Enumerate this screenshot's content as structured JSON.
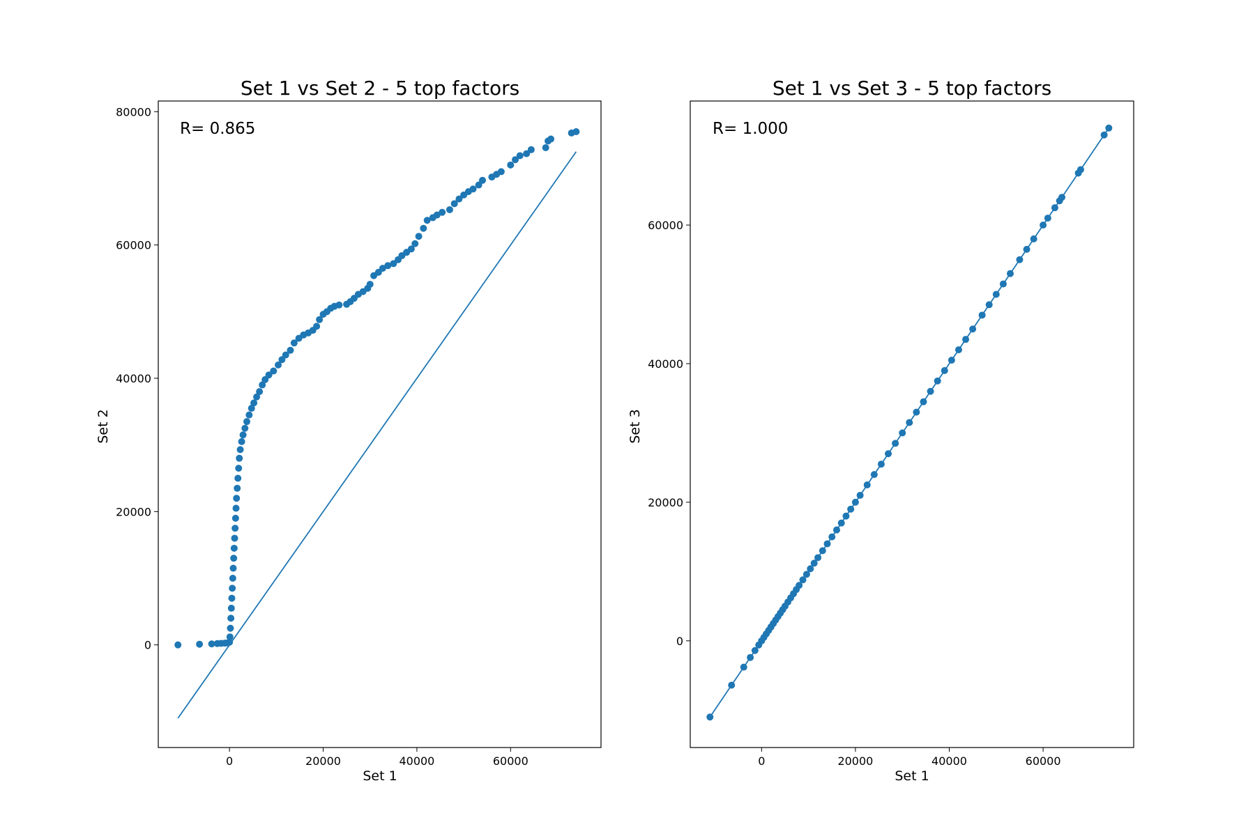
{
  "colors": {
    "series": "#1f77b4",
    "axis": "#000000",
    "background": "#ffffff"
  },
  "chart_data": [
    {
      "type": "scatter",
      "title": "Set 1 vs Set 2 - 5 top factors",
      "xlabel": "Set 1",
      "ylabel": "Set 2",
      "annotation": "R= 0.865",
      "xlim": [
        -15200,
        79300
      ],
      "ylim": [
        -15400,
        81600
      ],
      "xticks": [
        0,
        20000,
        40000,
        60000
      ],
      "yticks": [
        0,
        20000,
        40000,
        60000,
        80000
      ],
      "grid": false,
      "reference_line": {
        "x": [
          -11000,
          74000
        ],
        "y": [
          -11000,
          74000
        ]
      },
      "points": [
        [
          -11000,
          0
        ],
        [
          -6400,
          100
        ],
        [
          -3800,
          150
        ],
        [
          -2600,
          200
        ],
        [
          -1800,
          230
        ],
        [
          -1000,
          260
        ],
        [
          -400,
          300
        ],
        [
          0,
          400
        ],
        [
          100,
          1200
        ],
        [
          200,
          2500
        ],
        [
          300,
          4000
        ],
        [
          400,
          5500
        ],
        [
          500,
          7000
        ],
        [
          600,
          8500
        ],
        [
          700,
          10000
        ],
        [
          800,
          11500
        ],
        [
          900,
          13000
        ],
        [
          1000,
          14500
        ],
        [
          1100,
          16000
        ],
        [
          1200,
          17500
        ],
        [
          1300,
          19000
        ],
        [
          1400,
          20500
        ],
        [
          1500,
          22000
        ],
        [
          1650,
          23500
        ],
        [
          1800,
          25000
        ],
        [
          1950,
          26500
        ],
        [
          2100,
          28000
        ],
        [
          2300,
          29300
        ],
        [
          2600,
          30500
        ],
        [
          2900,
          31500
        ],
        [
          3300,
          32500
        ],
        [
          3700,
          33500
        ],
        [
          4200,
          34500
        ],
        [
          4700,
          35500
        ],
        [
          5200,
          36300
        ],
        [
          5800,
          37200
        ],
        [
          6400,
          38000
        ],
        [
          7000,
          39000
        ],
        [
          7600,
          39800
        ],
        [
          8400,
          40500
        ],
        [
          9400,
          41100
        ],
        [
          10400,
          42000
        ],
        [
          11200,
          42800
        ],
        [
          12000,
          43500
        ],
        [
          13000,
          44200
        ],
        [
          13800,
          45300
        ],
        [
          14800,
          46000
        ],
        [
          15800,
          46500
        ],
        [
          16800,
          46800
        ],
        [
          17800,
          47200
        ],
        [
          18600,
          47800
        ],
        [
          19200,
          48800
        ],
        [
          20000,
          49600
        ],
        [
          20800,
          50000
        ],
        [
          21600,
          50500
        ],
        [
          22400,
          50800
        ],
        [
          23400,
          51000
        ],
        [
          25000,
          51100
        ],
        [
          25800,
          51500
        ],
        [
          26600,
          52000
        ],
        [
          27500,
          52600
        ],
        [
          28500,
          53000
        ],
        [
          29500,
          53500
        ],
        [
          30000,
          54100
        ],
        [
          30800,
          55400
        ],
        [
          31800,
          55900
        ],
        [
          32700,
          56500
        ],
        [
          33800,
          56900
        ],
        [
          35000,
          57200
        ],
        [
          36000,
          57800
        ],
        [
          36800,
          58400
        ],
        [
          37800,
          58900
        ],
        [
          38800,
          59400
        ],
        [
          39600,
          60200
        ],
        [
          40400,
          61300
        ],
        [
          41400,
          62500
        ],
        [
          42200,
          63700
        ],
        [
          43400,
          64100
        ],
        [
          44300,
          64500
        ],
        [
          45400,
          64900
        ],
        [
          47000,
          65300
        ],
        [
          48000,
          66200
        ],
        [
          49000,
          66900
        ],
        [
          50000,
          67500
        ],
        [
          51000,
          68000
        ],
        [
          52000,
          68400
        ],
        [
          53200,
          69000
        ],
        [
          54000,
          69700
        ],
        [
          56000,
          70200
        ],
        [
          57000,
          70600
        ],
        [
          58000,
          71000
        ],
        [
          60000,
          72000
        ],
        [
          61000,
          72800
        ],
        [
          62000,
          73400
        ],
        [
          63400,
          73700
        ],
        [
          64400,
          74300
        ],
        [
          67500,
          74600
        ],
        [
          68000,
          75600
        ],
        [
          68600,
          75900
        ],
        [
          73000,
          76800
        ],
        [
          74000,
          77000
        ]
      ]
    },
    {
      "type": "scatter",
      "title": "Set 1 vs Set 3 - 5 top factors",
      "xlabel": "Set 1",
      "ylabel": "Set 3",
      "annotation": "R= 1.000",
      "xlim": [
        -15200,
        79300
      ],
      "ylim": [
        -15400,
        77900
      ],
      "xticks": [
        0,
        20000,
        40000,
        60000
      ],
      "yticks": [
        0,
        20000,
        40000,
        60000
      ],
      "grid": false,
      "reference_line": {
        "x": [
          -11000,
          74000
        ],
        "y": [
          -11000,
          74000
        ]
      },
      "points": [
        [
          -11000,
          -11000
        ],
        [
          -6400,
          -6400
        ],
        [
          -3800,
          -3800
        ],
        [
          -2400,
          -2400
        ],
        [
          -1400,
          -1400
        ],
        [
          -600,
          -600
        ],
        [
          0,
          0
        ],
        [
          500,
          500
        ],
        [
          1000,
          1000
        ],
        [
          1500,
          1500
        ],
        [
          2000,
          2000
        ],
        [
          2500,
          2500
        ],
        [
          3000,
          3000
        ],
        [
          3500,
          3500
        ],
        [
          4000,
          4000
        ],
        [
          4500,
          4500
        ],
        [
          5000,
          5000
        ],
        [
          5600,
          5600
        ],
        [
          6200,
          6200
        ],
        [
          6800,
          6800
        ],
        [
          7400,
          7400
        ],
        [
          8000,
          8000
        ],
        [
          8800,
          8800
        ],
        [
          9600,
          9600
        ],
        [
          10400,
          10400
        ],
        [
          11200,
          11200
        ],
        [
          12000,
          12000
        ],
        [
          13000,
          13000
        ],
        [
          14000,
          14000
        ],
        [
          15000,
          15000
        ],
        [
          16000,
          16000
        ],
        [
          17000,
          17000
        ],
        [
          18000,
          18000
        ],
        [
          19000,
          19000
        ],
        [
          20000,
          20000
        ],
        [
          21000,
          21000
        ],
        [
          22500,
          22500
        ],
        [
          24000,
          24000
        ],
        [
          25500,
          25500
        ],
        [
          27000,
          27000
        ],
        [
          28500,
          28500
        ],
        [
          30000,
          30000
        ],
        [
          31500,
          31500
        ],
        [
          33000,
          33000
        ],
        [
          34500,
          34500
        ],
        [
          36000,
          36000
        ],
        [
          37500,
          37500
        ],
        [
          39000,
          39000
        ],
        [
          40500,
          40500
        ],
        [
          42000,
          42000
        ],
        [
          43500,
          43500
        ],
        [
          45000,
          45000
        ],
        [
          47000,
          47000
        ],
        [
          48500,
          48500
        ],
        [
          50000,
          50000
        ],
        [
          51500,
          51500
        ],
        [
          53000,
          53000
        ],
        [
          55000,
          55000
        ],
        [
          56500,
          56500
        ],
        [
          58000,
          58000
        ],
        [
          60000,
          60000
        ],
        [
          61000,
          61000
        ],
        [
          62500,
          62500
        ],
        [
          63500,
          63500
        ],
        [
          64000,
          64000
        ],
        [
          67500,
          67500
        ],
        [
          68000,
          68000
        ],
        [
          73000,
          73000
        ],
        [
          74000,
          74000
        ]
      ]
    }
  ]
}
